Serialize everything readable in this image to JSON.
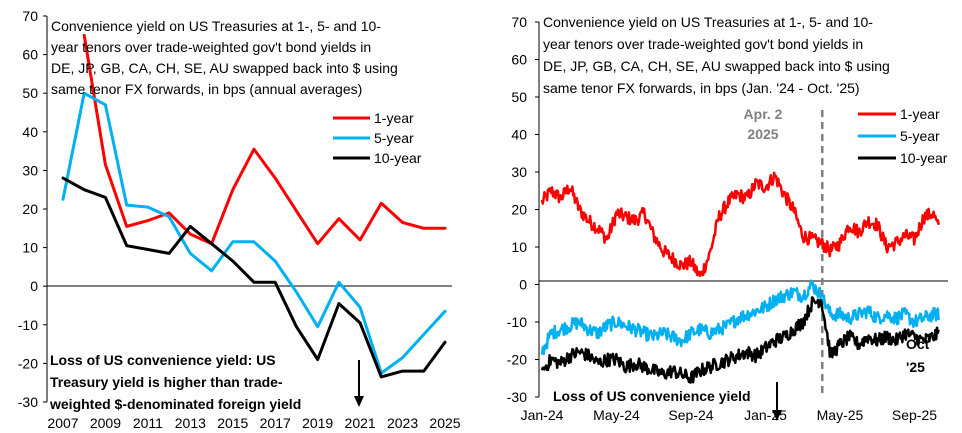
{
  "chart_data": [
    {
      "type": "line",
      "title_lines": [
        "Convenience yield on US Treasuries at 1-, 5- and 10-",
        "year tenors over trade-weighted gov't bond yields in",
        "DE, JP, GB, CA, CH, SE, AU swapped back into $ using",
        "same tenor FX forwards, in bps (annual averages)"
      ],
      "ylim": [
        -30,
        70
      ],
      "yticks": [
        "-30",
        "-20",
        "-10",
        "0",
        "10",
        "20",
        "30",
        "40",
        "50",
        "60",
        "70"
      ],
      "x": [
        2007,
        2008,
        2009,
        2010,
        2011,
        2012,
        2013,
        2014,
        2015,
        2016,
        2017,
        2018,
        2019,
        2020,
        2021,
        2022,
        2023,
        2024,
        2025
      ],
      "xticks": [
        "2007",
        "2009",
        "2011",
        "2013",
        "2015",
        "2017",
        "2019",
        "2021",
        "2023",
        "2025"
      ],
      "series": [
        {
          "name": "1-year",
          "color": "#ff0000",
          "values": [
            null,
            65,
            31.5,
            15.5,
            17,
            19,
            13.5,
            11,
            25,
            35.5,
            28,
            19.5,
            11,
            17.5,
            12,
            21.5,
            16.5,
            15,
            15
          ]
        },
        {
          "name": "5-year",
          "color": "#00b0f0",
          "values": [
            22.5,
            50,
            47,
            21,
            20.5,
            18,
            8.5,
            4,
            11.5,
            11.5,
            6.5,
            -1.5,
            -10.5,
            1,
            -5.5,
            -22.5,
            -18.5,
            -12.5,
            -6.5
          ]
        },
        {
          "name": "10-year",
          "color": "#000000",
          "values": [
            28,
            25,
            23,
            10.5,
            9.5,
            8.5,
            15.5,
            11,
            6.5,
            1,
            1,
            -10.5,
            -19,
            -4.5,
            -9.5,
            -23.5,
            -22,
            -22,
            -14.5
          ]
        }
      ],
      "annotation_lines": [
        "Loss of US convenience yield: US",
        "Treasury yield is higher than trade-",
        "weighted $-denominated foreign yield"
      ],
      "annotation_arrow_label": "↓"
    },
    {
      "type": "line",
      "title_lines": [
        "Convenience yield on US Treasuries at 1-, 5- and 10-",
        "year tenors over trade-weighted gov't bond yields in",
        "DE, JP, GB, CA, CH, SE, AU swapped back into $ using",
        "same tenor FX forwards, in bps (Jan. '24 - Oct. '25)"
      ],
      "ylim": [
        -30,
        70
      ],
      "yticks": [
        "-30",
        "-20",
        "-10",
        "0",
        "10",
        "20",
        "30",
        "40",
        "50",
        "60",
        "70"
      ],
      "x_unit": "months since Jan 2024",
      "xlim": [
        0,
        21.8
      ],
      "xticks": [
        {
          "label": "Jan-24",
          "value": 0
        },
        {
          "label": "May-24",
          "value": 4
        },
        {
          "label": "Sep-24",
          "value": 8
        },
        {
          "label": "Jan-25",
          "value": 12
        },
        {
          "label": "May-25",
          "value": 16
        },
        {
          "label": "Sep-25",
          "value": 20
        }
      ],
      "event_line": {
        "x": 15.05,
        "label_lines": [
          "Apr. 2",
          "2025"
        ]
      },
      "series": [
        {
          "name": "1-year",
          "color": "#ff0000",
          "anchors": [
            [
              0,
              22
            ],
            [
              0.5,
              25
            ],
            [
              1,
              23
            ],
            [
              1.5,
              26
            ],
            [
              2,
              20
            ],
            [
              2.5,
              17
            ],
            [
              3,
              15
            ],
            [
              3.5,
              12
            ],
            [
              4,
              19
            ],
            [
              4.5,
              18
            ],
            [
              5,
              17
            ],
            [
              5.5,
              19
            ],
            [
              6,
              13
            ],
            [
              6.5,
              9
            ],
            [
              7,
              7
            ],
            [
              7.5,
              5
            ],
            [
              8,
              6
            ],
            [
              8.5,
              2
            ],
            [
              9,
              8
            ],
            [
              9.5,
              18
            ],
            [
              10,
              22
            ],
            [
              10.5,
              24
            ],
            [
              11,
              23
            ],
            [
              11.5,
              27
            ],
            [
              12,
              26
            ],
            [
              12.5,
              29
            ],
            [
              13,
              24
            ],
            [
              13.5,
              20
            ],
            [
              14,
              13
            ],
            [
              14.5,
              12
            ],
            [
              15,
              11
            ],
            [
              15.5,
              9
            ],
            [
              16,
              11
            ],
            [
              16.5,
              16
            ],
            [
              17,
              14
            ],
            [
              17.5,
              17
            ],
            [
              18,
              16
            ],
            [
              18.5,
              10
            ],
            [
              19,
              11
            ],
            [
              19.5,
              13
            ],
            [
              20,
              12
            ],
            [
              20.5,
              18
            ],
            [
              21,
              19
            ],
            [
              21.3,
              15
            ]
          ]
        },
        {
          "name": "5-year",
          "color": "#00b0f0",
          "anchors": [
            [
              0,
              -18
            ],
            [
              0.5,
              -13
            ],
            [
              1,
              -12
            ],
            [
              1.5,
              -11
            ],
            [
              2,
              -10
            ],
            [
              2.5,
              -12
            ],
            [
              3,
              -13
            ],
            [
              3.5,
              -11
            ],
            [
              4,
              -10
            ],
            [
              4.5,
              -11
            ],
            [
              5,
              -12
            ],
            [
              5.5,
              -13
            ],
            [
              6,
              -14
            ],
            [
              6.5,
              -13
            ],
            [
              7,
              -14
            ],
            [
              7.5,
              -15
            ],
            [
              8,
              -13
            ],
            [
              8.5,
              -12
            ],
            [
              9,
              -13
            ],
            [
              9.5,
              -12
            ],
            [
              10,
              -11
            ],
            [
              10.5,
              -9
            ],
            [
              11,
              -8
            ],
            [
              11.5,
              -7
            ],
            [
              12,
              -6
            ],
            [
              12.5,
              -4
            ],
            [
              13,
              -3
            ],
            [
              13.5,
              -2
            ],
            [
              14,
              -3
            ],
            [
              14.5,
              0
            ],
            [
              15,
              -3
            ],
            [
              15.5,
              -8
            ],
            [
              16,
              -8
            ],
            [
              16.5,
              -9
            ],
            [
              17,
              -8
            ],
            [
              17.5,
              -7
            ],
            [
              18,
              -9
            ],
            [
              18.5,
              -8
            ],
            [
              19,
              -9
            ],
            [
              19.5,
              -8
            ],
            [
              20,
              -10
            ],
            [
              20.5,
              -9
            ],
            [
              21,
              -8
            ],
            [
              21.3,
              -8
            ]
          ]
        },
        {
          "name": "10-year",
          "color": "#000000",
          "anchors": [
            [
              0,
              -23
            ],
            [
              0.5,
              -20
            ],
            [
              1,
              -21
            ],
            [
              1.5,
              -19
            ],
            [
              2,
              -18
            ],
            [
              2.5,
              -19
            ],
            [
              3,
              -21
            ],
            [
              3.5,
              -20
            ],
            [
              4,
              -20
            ],
            [
              4.5,
              -22
            ],
            [
              5,
              -21
            ],
            [
              5.5,
              -22
            ],
            [
              6,
              -23
            ],
            [
              6.5,
              -24
            ],
            [
              7,
              -23
            ],
            [
              7.5,
              -24
            ],
            [
              8,
              -25
            ],
            [
              8.5,
              -23
            ],
            [
              9,
              -22
            ],
            [
              9.5,
              -21
            ],
            [
              10,
              -20
            ],
            [
              10.5,
              -19
            ],
            [
              11,
              -18
            ],
            [
              11.5,
              -19
            ],
            [
              12,
              -17
            ],
            [
              12.5,
              -15
            ],
            [
              13,
              -14
            ],
            [
              13.5,
              -12
            ],
            [
              14,
              -10
            ],
            [
              14.5,
              -5
            ],
            [
              15,
              -4
            ],
            [
              15.5,
              -19
            ],
            [
              16,
              -16
            ],
            [
              16.5,
              -14
            ],
            [
              17,
              -16
            ],
            [
              17.5,
              -14
            ],
            [
              18,
              -15
            ],
            [
              18.5,
              -14
            ],
            [
              19,
              -15
            ],
            [
              19.5,
              -13
            ],
            [
              20,
              -14
            ],
            [
              20.5,
              -15
            ],
            [
              21,
              -14
            ],
            [
              21.3,
              -13
            ]
          ]
        }
      ],
      "end_label_lines": [
        "Oct",
        "'25"
      ],
      "annotation_lines": [
        "Loss of US convenience yield"
      ],
      "annotation_arrow_label": "↓"
    }
  ]
}
